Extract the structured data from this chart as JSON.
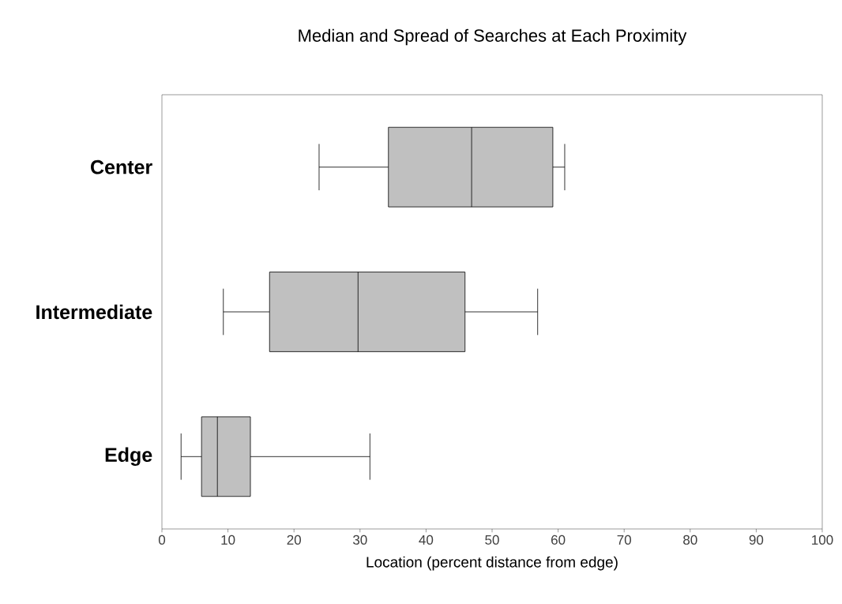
{
  "chart_data": {
    "type": "box",
    "title": "Median and Spread of Searches at Each Proximity",
    "xlabel": "Location (percent distance from edge)",
    "orientation": "horizontal",
    "categories": [
      "Center",
      "Intermediate",
      "Edge"
    ],
    "color": "#c0c0c0",
    "boxes": [
      {
        "low": 23.8,
        "q1": 34.3,
        "median": 46.9,
        "q3": 59.2,
        "high": 61
      },
      {
        "low": 9.3,
        "q1": 16.3,
        "median": 29.7,
        "q3": 45.9,
        "high": 56.9
      },
      {
        "low": 2.9,
        "q1": 6.0,
        "median": 8.4,
        "q3": 13.4,
        "high": 31.5
      }
    ],
    "xlim": [
      0,
      100
    ],
    "xticks": [
      0,
      10,
      20,
      30,
      40,
      50,
      60,
      70,
      80,
      90,
      100
    ],
    "grid": false
  }
}
